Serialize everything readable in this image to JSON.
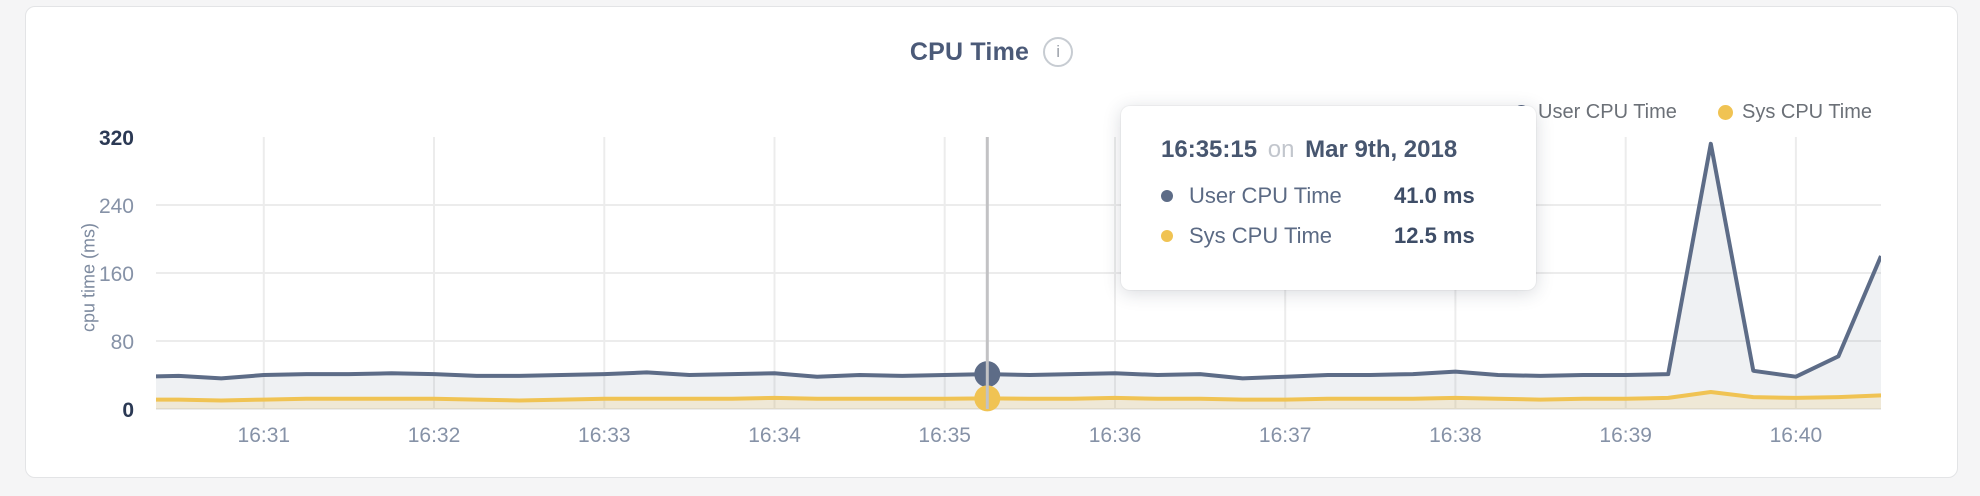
{
  "header": {
    "title": "CPU Time",
    "info_icon": "i"
  },
  "legend": {
    "items": [
      {
        "label": "User CPU Time",
        "color": "#5d6c87"
      },
      {
        "label": "Sys CPU Time",
        "color": "#f0c353"
      }
    ]
  },
  "tooltip": {
    "time": "16:35:15",
    "connector": "on",
    "date": "Mar 9th, 2018",
    "rows": [
      {
        "label": "User CPU Time",
        "value": "41.0 ms",
        "color": "#5d6c87"
      },
      {
        "label": "Sys CPU Time",
        "value": "12.5 ms",
        "color": "#f0c353"
      }
    ]
  },
  "chart_data": {
    "type": "area",
    "title": "CPU Time",
    "xlabel": "",
    "ylabel": "cpu time (ms)",
    "ylim": [
      0,
      320
    ],
    "yticks": [
      0,
      80,
      160,
      240,
      320
    ],
    "x_ticks": [
      "16:31",
      "16:32",
      "16:33",
      "16:34",
      "16:35",
      "16:36",
      "16:37",
      "16:38",
      "16:39",
      "16:40"
    ],
    "start_time": "16:30:15",
    "sample_interval_seconds": 15,
    "grid": true,
    "legend_position": "top-right",
    "colors": {
      "grid": "#ececec",
      "tick_light": "#8692a7",
      "tick_dark": "#2b3954",
      "hover_line": "#c2c2c4",
      "user_fill": "rgba(99,113,139,0.10)",
      "sys_fill": "rgba(240,195,83,0.18)"
    },
    "series": [
      {
        "name": "User CPU Time",
        "color": "#5d6c87",
        "values": [
          38,
          39,
          36,
          40,
          41,
          41,
          42,
          41,
          39,
          39,
          40,
          41,
          43,
          40,
          41,
          42,
          38,
          40,
          39,
          40,
          41,
          40,
          41,
          42,
          40,
          41,
          36,
          38,
          40,
          40,
          41,
          44,
          40,
          39,
          40,
          40,
          41,
          312,
          45,
          38,
          62,
          180
        ]
      },
      {
        "name": "Sys CPU Time",
        "color": "#f0c353",
        "values": [
          11,
          11,
          10,
          11,
          12,
          12,
          12,
          12,
          11,
          10,
          11,
          12,
          12,
          12,
          12,
          13,
          12,
          12,
          12,
          12,
          12.5,
          12,
          12,
          13,
          12,
          12,
          11,
          11,
          12,
          12,
          12,
          13,
          12,
          11,
          12,
          12,
          13,
          20,
          14,
          13,
          14,
          16
        ]
      }
    ],
    "hover_point": {
      "index": 20,
      "time": "16:35:15",
      "values": {
        "User CPU Time": 41.0,
        "Sys CPU Time": 12.5
      }
    }
  }
}
